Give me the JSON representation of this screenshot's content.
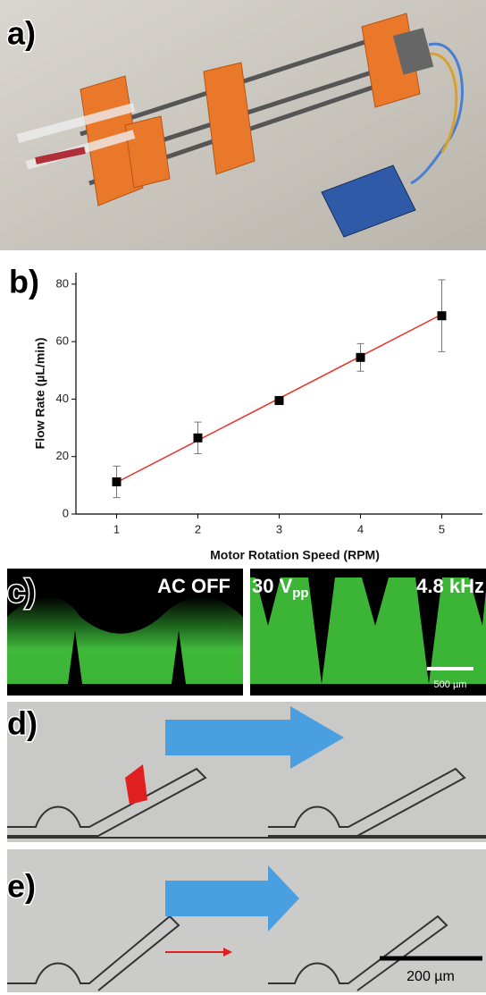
{
  "panels": {
    "a": {
      "label": "a)"
    },
    "b": {
      "label": "b)"
    },
    "c": {
      "label": "c)",
      "left_text": "AC OFF",
      "right_voltage": "30 V",
      "right_voltage_sub": "pp",
      "right_frequency": "4.8 kHz",
      "scale_bar": "500 µm"
    },
    "d": {
      "label": "d)"
    },
    "e": {
      "label": "e)",
      "scale_bar": "200 µm"
    }
  },
  "chart_data": {
    "type": "scatter",
    "x_label": "Motor Rotation Speed (RPM)",
    "y_label": "Flow Rate (µL/min)",
    "series": [
      {
        "color": "#000000",
        "x": [
          1,
          2,
          3,
          4,
          5
        ],
        "values": [
          11.2,
          26.5,
          39.5,
          54.5,
          69
        ],
        "errors": [
          5.5,
          5.5,
          1,
          4.8,
          12.5
        ]
      },
      {
        "color": "#e8322a",
        "x": [
          1,
          5
        ],
        "values": [
          11,
          69.5
        ]
      }
    ],
    "xlim": [
      0.5,
      5.5
    ],
    "xticks": [
      1,
      2,
      3,
      4,
      5
    ],
    "ylim": [
      0,
      84
    ],
    "yticks": [
      0,
      20,
      40,
      60,
      80
    ]
  }
}
